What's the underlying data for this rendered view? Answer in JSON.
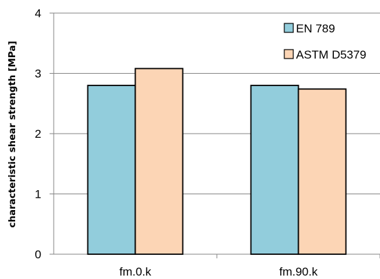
{
  "chart_data": {
    "type": "bar",
    "title": "",
    "xlabel": "",
    "ylabel": "characteristic shear strength [MPa]",
    "categories": [
      "fm.0.k",
      "fm.90.k"
    ],
    "ylim": [
      0,
      4
    ],
    "yticks": [
      "0",
      "1",
      "2",
      "3",
      "4"
    ],
    "grid": true,
    "legend_position": "top-right",
    "series": [
      {
        "name": "EN 789",
        "values": [
          2.8,
          2.8
        ],
        "color": "#92CDDC"
      },
      {
        "name": "ASTM D5379",
        "values": [
          3.08,
          2.74
        ],
        "color": "#FCD5B5"
      }
    ]
  }
}
